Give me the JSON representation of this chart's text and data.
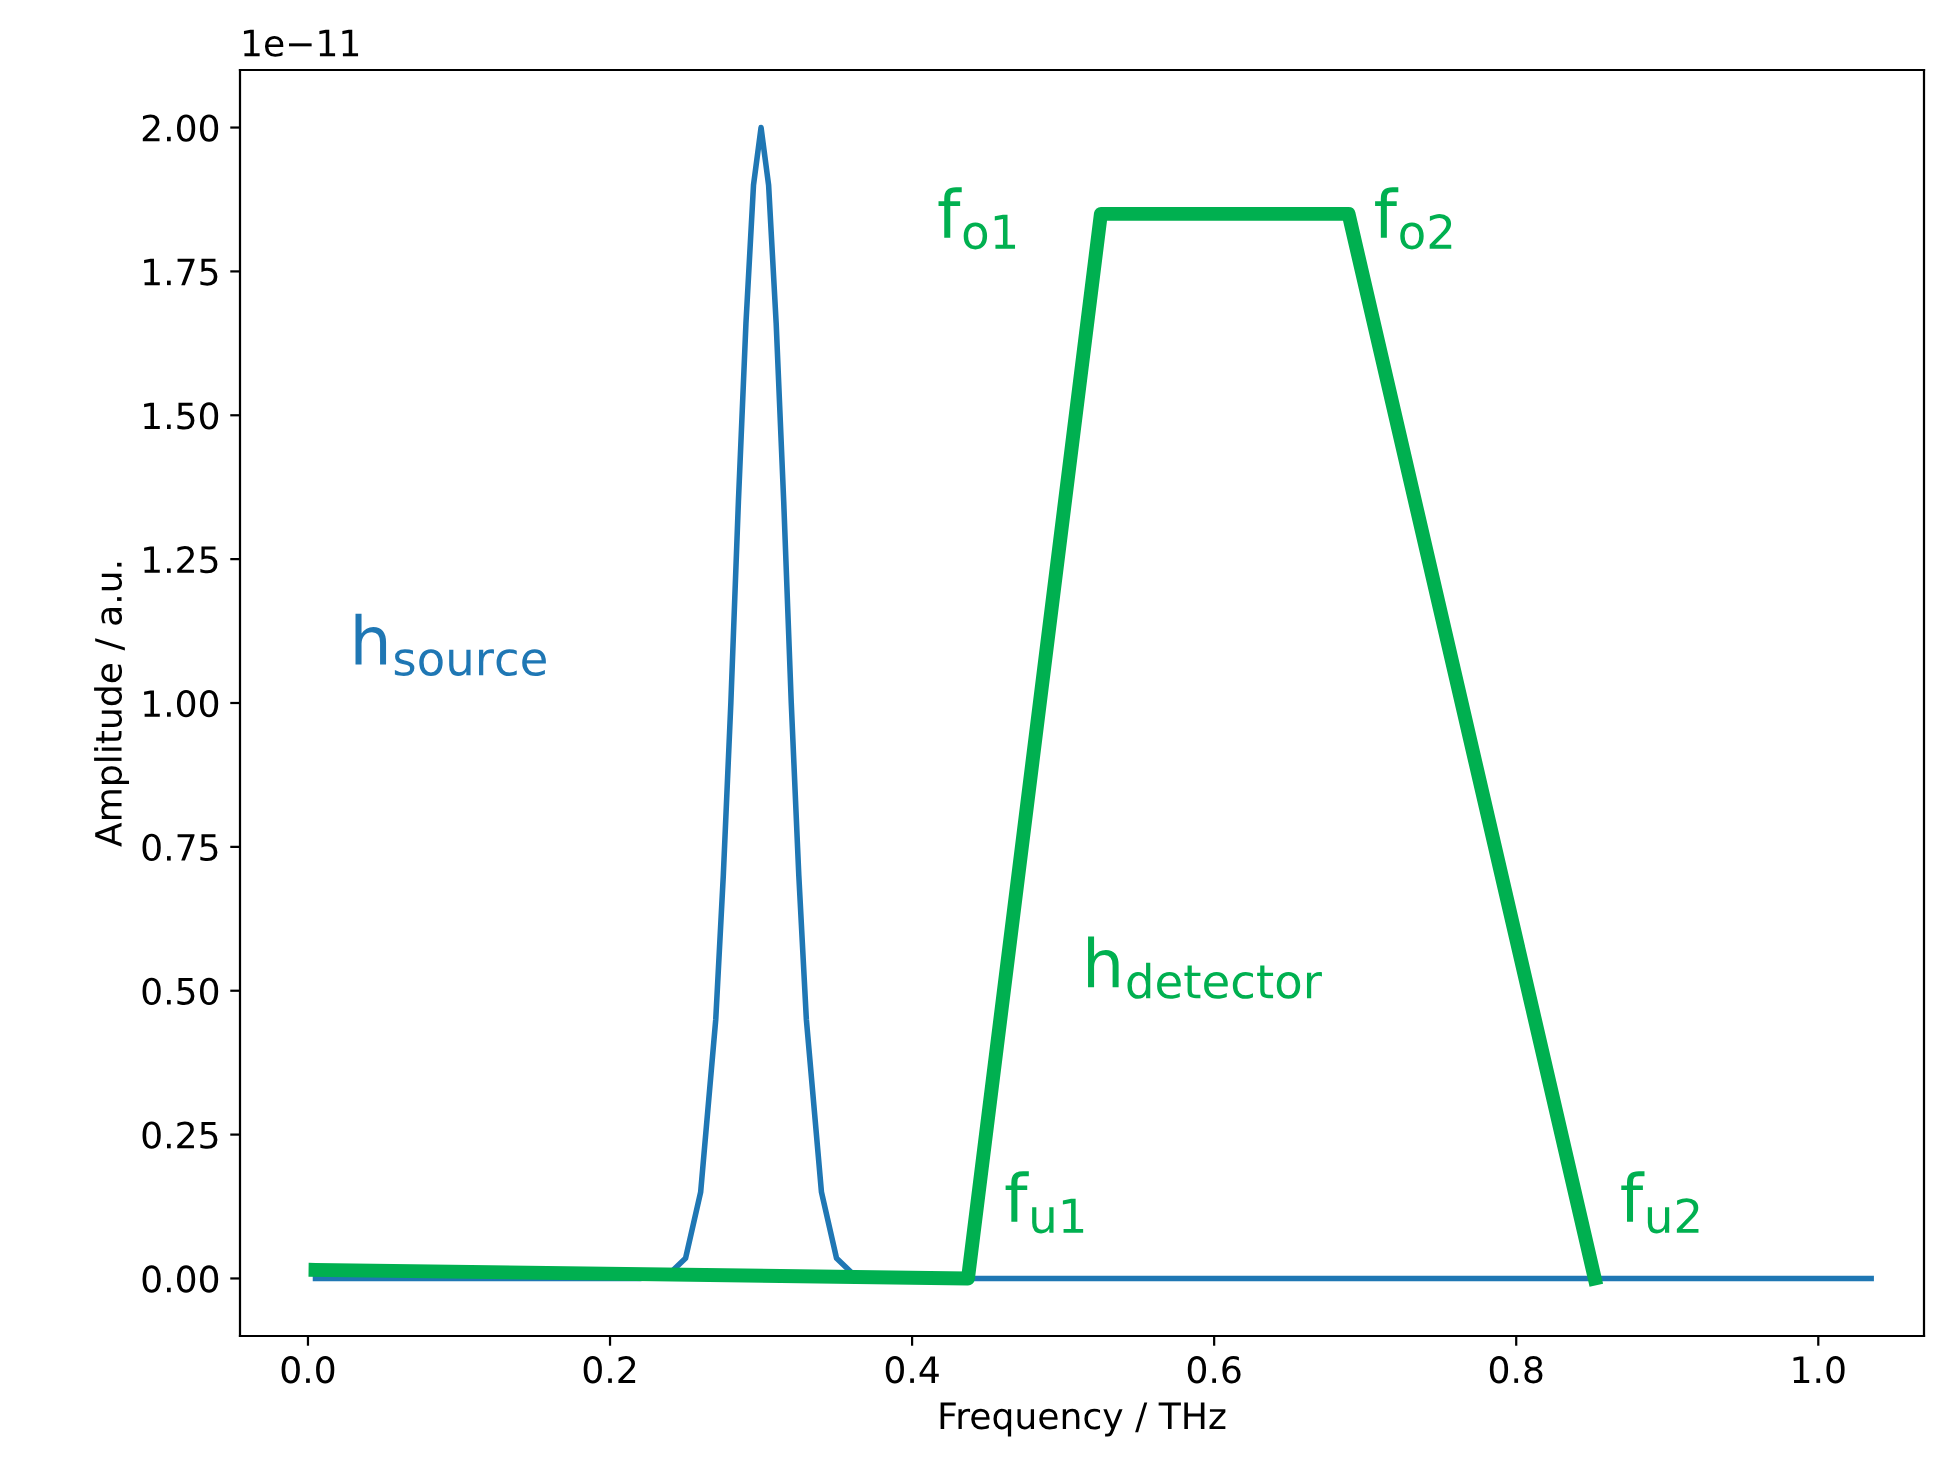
{
  "chart_data": {
    "type": "line",
    "xlabel": "Frequency / THz",
    "ylabel": "Amplitude / a.u.",
    "xlim": [
      -0.045,
      1.07
    ],
    "xticks": [
      {
        "value": 0,
        "label": "0.0"
      },
      0.2,
      0.4,
      0.6,
      0.8,
      {
        "value": 1,
        "label": "1.0"
      }
    ],
    "ylim": [
      -0.1,
      2.1
    ],
    "yticks": [
      {
        "value": 0,
        "label": "0.00"
      },
      0.25,
      {
        "value": 0.5,
        "label": "0.50"
      },
      0.75,
      {
        "value": 1,
        "label": "1.00"
      },
      1.25,
      {
        "value": 1.5,
        "label": "1.50"
      },
      1.75,
      {
        "value": 2,
        "label": "2.00"
      }
    ],
    "grid": false,
    "marker": "none",
    "line_style": "solid",
    "series": [
      {
        "name": "h$_{source}$",
        "color": "#1f77b4",
        "x": [
          0.005,
          0.22,
          0.24,
          0.25,
          0.26,
          0.27,
          0.275,
          0.28,
          0.285,
          0.29,
          0.295,
          0.3,
          0.305,
          0.31,
          0.315,
          0.32,
          0.325,
          0.33,
          0.34,
          0.35,
          0.36,
          0.38,
          1.035
        ],
        "values": [
          0,
          0,
          0.01,
          0.035,
          0.15,
          0.45,
          0.7,
          1.0,
          1.35,
          1.66,
          1.9,
          2.0,
          1.9,
          1.66,
          1.35,
          1.0,
          0.7,
          0.45,
          0.15,
          0.035,
          0.01,
          0,
          0
        ]
      },
      {
        "name": "h$_{detector}$",
        "color": "#00b050",
        "x": [
          0.005,
          0.437,
          0.525,
          0.689,
          0.852
        ],
        "values": [
          0.015,
          0,
          1.85,
          1.85,
          0
        ]
      }
    ],
    "annotations": [
      "1e−11",
      {
        "text": "f$_{o1}$",
        "x": 0.525,
        "y": 1.85
      },
      {
        "text": "f$_{o2}$",
        "x": 0.689,
        "y": 1.85
      },
      {
        "text": "f$_{u1}$",
        "x": 0.437,
        "y": 0
      },
      {
        "text": "f$_{u2}$",
        "x": 0.852,
        "y": 0
      }
    ]
  }
}
